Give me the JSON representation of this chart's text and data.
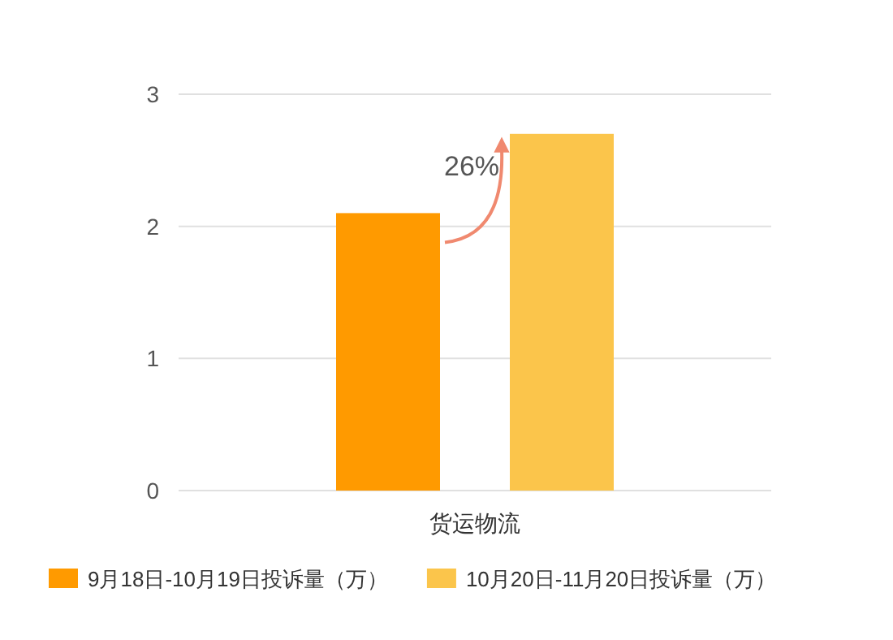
{
  "chart_data": {
    "type": "bar",
    "categories": [
      "货运物流"
    ],
    "series": [
      {
        "name": "9月18日-10月19日投诉量（万）",
        "color": "#ff9a00",
        "values": [
          2.1
        ]
      },
      {
        "name": "10月20日-11月20日投诉量（万）",
        "color": "#fbc54b",
        "values": [
          2.7
        ]
      }
    ],
    "ylim": [
      0,
      3
    ],
    "yticks": [
      0,
      1,
      2,
      3
    ],
    "grid": "y",
    "legend": "bottom",
    "annotations": [
      "26%"
    ]
  }
}
